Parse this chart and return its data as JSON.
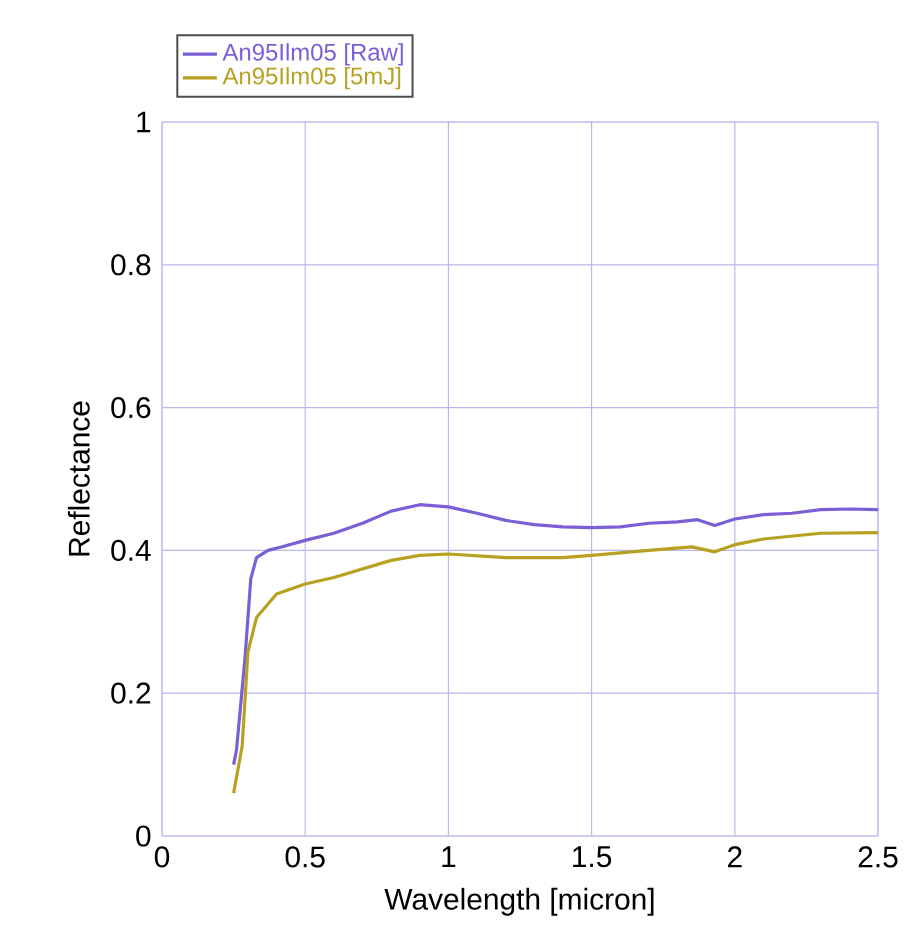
{
  "chart_data": {
    "type": "line",
    "xlabel": "Wavelength [micron]",
    "ylabel": "Reflectance",
    "xlim": [
      0,
      2.5
    ],
    "ylim": [
      0,
      1
    ],
    "xticks": [
      0,
      0.5,
      1,
      1.5,
      2,
      2.5
    ],
    "yticks": [
      0,
      0.2,
      0.4,
      0.6,
      0.8,
      1
    ],
    "grid": true,
    "legend": "top left",
    "marker": "none",
    "line_style": "solid",
    "series": [
      {
        "name": "An95Ilm05 [Raw]",
        "color": "#7b5fd6",
        "x": [
          0.25,
          0.26,
          0.29,
          0.31,
          0.33,
          0.37,
          0.42,
          0.5,
          0.6,
          0.7,
          0.8,
          0.9,
          1.0,
          1.1,
          1.2,
          1.3,
          1.4,
          1.5,
          1.6,
          1.7,
          1.8,
          1.87,
          1.93,
          2.0,
          2.1,
          2.2,
          2.3,
          2.4,
          2.5
        ],
        "values": [
          0.1,
          0.12,
          0.25,
          0.36,
          0.39,
          0.4,
          0.405,
          0.414,
          0.424,
          0.438,
          0.455,
          0.464,
          0.461,
          0.452,
          0.442,
          0.436,
          0.433,
          0.432,
          0.433,
          0.438,
          0.44,
          0.443,
          0.435,
          0.444,
          0.45,
          0.452,
          0.457,
          0.458,
          0.457
        ]
      },
      {
        "name": "An95Ilm05 [5mJ]",
        "color": "#b8a020",
        "x": [
          0.25,
          0.28,
          0.3,
          0.33,
          0.4,
          0.5,
          0.6,
          0.7,
          0.8,
          0.9,
          1.0,
          1.2,
          1.4,
          1.5,
          1.7,
          1.85,
          1.93,
          2.0,
          2.1,
          2.3,
          2.5
        ],
        "values": [
          0.06,
          0.126,
          0.258,
          0.306,
          0.339,
          0.353,
          0.362,
          0.374,
          0.386,
          0.393,
          0.395,
          0.39,
          0.39,
          0.393,
          0.4,
          0.405,
          0.398,
          0.408,
          0.416,
          0.424,
          0.425
        ]
      }
    ]
  }
}
